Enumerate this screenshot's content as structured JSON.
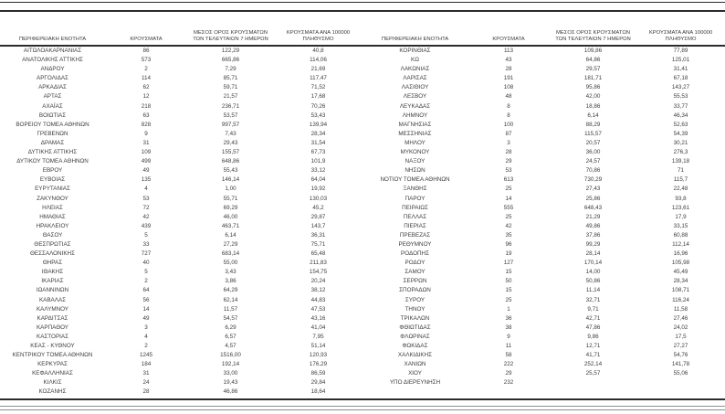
{
  "page": {
    "background": "#ffffff",
    "text_color": "#3d3d3d",
    "rule_color": "#2b2b2b"
  },
  "table": {
    "headers": {
      "region": "ΠΕΡΙΦΕΡΕΙΑΚΗ ΕΝΟΤΗΤΑ",
      "cases": "ΚΡΟΥΣΜΑΤΑ",
      "avg7": "ΜΕΣΟΣ ΟΡΟΣ ΚΡΟΥΣΜΑΤΩΝ ΤΩΝ ΤΕΛΕΥΤΑΙΩΝ 7 ΗΜΕΡΩΝ",
      "per100k": "ΚΡΟΥΣΜΑΤΑ ΑΝΑ 100000 ΠΛΗΘΥΣΜΟ"
    },
    "left_rows": [
      [
        "ΑΙΤΩΛΟΑΚΑΡΝΑΝΙΑΣ",
        "86",
        "122,29",
        "40,8"
      ],
      [
        "ΑΝΑΤΟΛΙΚΗΣ ΑΤΤΙΚΗΣ",
        "573",
        "665,86",
        "114,06"
      ],
      [
        "ΑΝΔΡΟΥ",
        "2",
        "7,29",
        "21,69"
      ],
      [
        "ΑΡΓΟΛΙΔΑΣ",
        "114",
        "85,71",
        "117,47"
      ],
      [
        "ΑΡΚΑΔΙΑΣ",
        "62",
        "59,71",
        "71,52"
      ],
      [
        "ΑΡΤΑΣ",
        "12",
        "21,57",
        "17,68"
      ],
      [
        "ΑΧΑΪΑΣ",
        "218",
        "236,71",
        "70,26"
      ],
      [
        "ΒΟΙΩΤΙΑΣ",
        "63",
        "53,57",
        "53,43"
      ],
      [
        "ΒΟΡΕΙΟΥ ΤΟΜΕΑ ΑΘΗΝΩΝ",
        "828",
        "997,57",
        "139,94"
      ],
      [
        "ΓΡΕΒΕΝΩΝ",
        "9",
        "7,43",
        "28,34"
      ],
      [
        "ΔΡΑΜΑΣ",
        "31",
        "29,43",
        "31,54"
      ],
      [
        "ΔΥΤΙΚΗΣ ΑΤΤΙΚΗΣ",
        "109",
        "155,57",
        "67,73"
      ],
      [
        "ΔΥΤΙΚΟΥ ΤΟΜΕΑ ΑΘΗΝΩΝ",
        "499",
        "648,86",
        "101,9"
      ],
      [
        "ΕΒΡΟΥ",
        "49",
        "55,43",
        "33,12"
      ],
      [
        "ΕΥΒΟΙΑΣ",
        "135",
        "146,14",
        "64,04"
      ],
      [
        "ΕΥΡΥΤΑΝΙΑΣ",
        "4",
        "1,00",
        "19,92"
      ],
      [
        "ΖΑΚΥΝΘΟΥ",
        "53",
        "55,71",
        "130,03"
      ],
      [
        "ΗΛΕΙΑΣ",
        "72",
        "69,29",
        "45,2"
      ],
      [
        "ΗΜΑΘΙΑΣ",
        "42",
        "46,00",
        "29,87"
      ],
      [
        "ΗΡΑΚΛΕΙΟΥ",
        "439",
        "463,71",
        "143,7"
      ],
      [
        "ΘΑΣΟΥ",
        "5",
        "6,14",
        "36,31"
      ],
      [
        "ΘΕΣΠΡΩΤΙΑΣ",
        "33",
        "27,29",
        "75,71"
      ],
      [
        "ΘΕΣΣΑΛΟΝΙΚΗΣ",
        "727",
        "683,14",
        "65,48"
      ],
      [
        "ΘΗΡΑΣ",
        "40",
        "55,00",
        "211,83"
      ],
      [
        "ΙΘΑΚΗΣ",
        "5",
        "3,43",
        "154,75"
      ],
      [
        "ΙΚΑΡΙΑΣ",
        "2",
        "3,86",
        "20,24"
      ],
      [
        "ΙΩΑΝΝΙΝΩΝ",
        "64",
        "64,29",
        "38,12"
      ],
      [
        "ΚΑΒΑΛΑΣ",
        "56",
        "62,14",
        "44,83"
      ],
      [
        "ΚΑΛΥΜΝΟΥ",
        "14",
        "11,57",
        "47,53"
      ],
      [
        "ΚΑΡΔΙΤΣΑΣ",
        "49",
        "54,57",
        "43,16"
      ],
      [
        "ΚΑΡΠΑΘΟΥ",
        "3",
        "6,29",
        "41,04"
      ],
      [
        "ΚΑΣΤΟΡΙΑΣ",
        "4",
        "6,57",
        "7,95"
      ],
      [
        "ΚΕΑΣ - ΚΥΘΝΟΥ",
        "2",
        "4,57",
        "51,14"
      ],
      [
        "ΚΕΝΤΡΙΚΟΥ ΤΟΜΕΑ ΑΘΗΝΩΝ",
        "1245",
        "1516,00",
        "120,93"
      ],
      [
        "ΚΕΡΚΥΡΑΣ",
        "184",
        "192,14",
        "176,29"
      ],
      [
        "ΚΕΦΑΛΛΗΝΙΑΣ",
        "31",
        "33,00",
        "86,59"
      ],
      [
        "ΚΙΛΚΙΣ",
        "24",
        "19,43",
        "29,84"
      ],
      [
        "ΚΟΖΑΝΗΣ",
        "28",
        "46,86",
        "18,64"
      ]
    ],
    "right_rows": [
      [
        "ΚΟΡΙΝΘΙΑΣ",
        "113",
        "109,86",
        "77,89"
      ],
      [
        "ΚΩ",
        "43",
        "64,86",
        "125,01"
      ],
      [
        "ΛΑΚΩΝΙΑΣ",
        "28",
        "29,57",
        "31,41"
      ],
      [
        "ΛΑΡΙΣΑΣ",
        "191",
        "181,71",
        "67,18"
      ],
      [
        "ΛΑΣΙΘΙΟΥ",
        "108",
        "95,86",
        "143,27"
      ],
      [
        "ΛΕΣΒΟΥ",
        "48",
        "42,00",
        "55,53"
      ],
      [
        "ΛΕΥΚΑΔΑΣ",
        "8",
        "18,86",
        "33,77"
      ],
      [
        "ΛΗΜΝΟΥ",
        "8",
        "6,14",
        "46,34"
      ],
      [
        "ΜΑΓΝΗΣΙΑΣ",
        "100",
        "88,29",
        "52,63"
      ],
      [
        "ΜΕΣΣΗΝΙΑΣ",
        "87",
        "115,57",
        "54,39"
      ],
      [
        "ΜΗΛΟΥ",
        "3",
        "20,57",
        "30,21"
      ],
      [
        "ΜΥΚΟΝΟΥ",
        "28",
        "36,00",
        "276,3"
      ],
      [
        "ΝΑΞΟΥ",
        "29",
        "24,57",
        "139,18"
      ],
      [
        "ΝΗΣΩΝ",
        "53",
        "70,86",
        "71"
      ],
      [
        "ΝΟΤΙΟΥ ΤΟΜΕΑ ΑΘΗΝΩΝ",
        "613",
        "730,29",
        "115,7"
      ],
      [
        "ΞΑΝΘΗΣ",
        "25",
        "27,43",
        "22,48"
      ],
      [
        "ΠΑΡΟΥ",
        "14",
        "25,86",
        "93,8"
      ],
      [
        "ΠΕΙΡΑΙΩΣ",
        "555",
        "648,43",
        "123,61"
      ],
      [
        "ΠΕΛΛΑΣ",
        "25",
        "21,29",
        "17,9"
      ],
      [
        "ΠΙΕΡΙΑΣ",
        "42",
        "49,86",
        "33,15"
      ],
      [
        "ΠΡΕΒΕΖΑΣ",
        "35",
        "37,86",
        "60,88"
      ],
      [
        "ΡΕΘΥΜΝΟΥ",
        "96",
        "99,29",
        "112,14"
      ],
      [
        "ΡΟΔΟΠΗΣ",
        "19",
        "28,14",
        "16,96"
      ],
      [
        "ΡΟΔΟΥ",
        "127",
        "170,14",
        "105,98"
      ],
      [
        "ΣΑΜΟΥ",
        "15",
        "14,00",
        "45,49"
      ],
      [
        "ΣΕΡΡΩΝ",
        "50",
        "50,86",
        "28,34"
      ],
      [
        "ΣΠΟΡΑΔΩΝ",
        "15",
        "11,14",
        "108,71"
      ],
      [
        "ΣΥΡΟΥ",
        "25",
        "32,71",
        "116,24"
      ],
      [
        "ΤΗΝΟΥ",
        "1",
        "9,71",
        "11,58"
      ],
      [
        "ΤΡΙΚΑΛΩΝ",
        "36",
        "42,71",
        "27,46"
      ],
      [
        "ΦΘΙΩΤΙΔΑΣ",
        "38",
        "47,86",
        "24,02"
      ],
      [
        "ΦΛΩΡΙΝΑΣ",
        "9",
        "9,86",
        "17,5"
      ],
      [
        "ΦΩΚΙΔΑΣ",
        "11",
        "12,71",
        "27,27"
      ],
      [
        "ΧΑΛΚΙΔΙΚΗΣ",
        "58",
        "41,71",
        "54,76"
      ],
      [
        "ΧΑΝΙΩΝ",
        "222",
        "252,14",
        "141,78"
      ],
      [
        "ΧΙΟΥ",
        "29",
        "25,57",
        "55,06"
      ],
      [
        "ΥΠΟ ΔΙΕΡΕΥΝΗΣΗ",
        "232",
        "",
        ""
      ]
    ]
  }
}
